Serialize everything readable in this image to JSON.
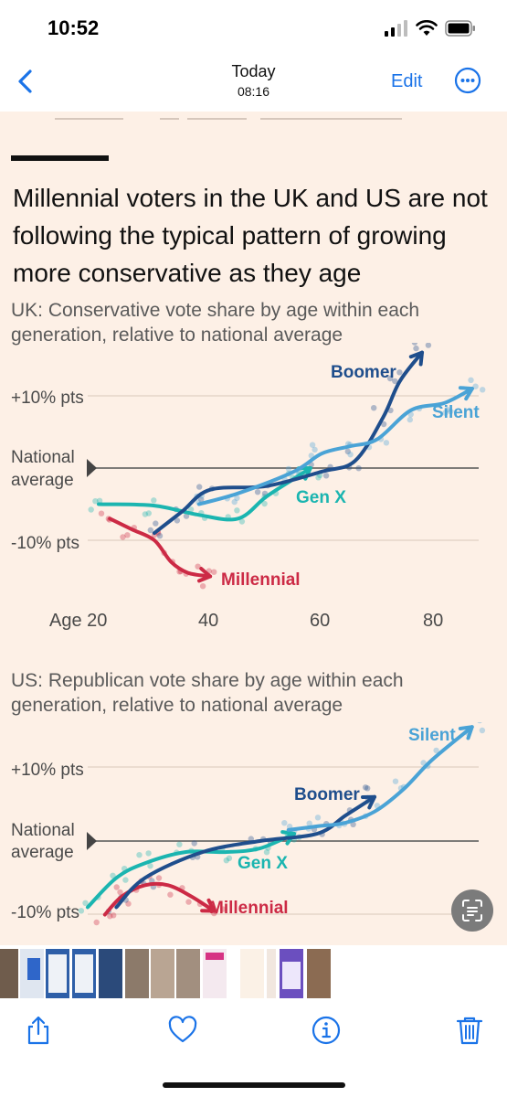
{
  "status": {
    "time": "10:52"
  },
  "nav": {
    "title": "Today",
    "subtitle": "08:16",
    "edit_label": "Edit"
  },
  "article": {
    "headline": "Millennial voters in the UK and US are not following the typical pattern of growing more conservative as they age"
  },
  "uk_chart": {
    "subtitle": "UK: Conservative vote share by age within each generation, relative to national average",
    "y_labels": [
      "+10% pts",
      "National",
      "average",
      "-10% pts"
    ],
    "x_labels": [
      "Age 20",
      "40",
      "60",
      "80"
    ],
    "series_labels": {
      "boomer": "Boomer",
      "silent": "Silent",
      "genx": "Gen X",
      "millennial": "Millennial"
    }
  },
  "us_chart": {
    "subtitle": "US: Republican vote share by age within each generation, relative to national average",
    "y_labels": [
      "+10% pts",
      "National",
      "average",
      "-10% pts"
    ],
    "series_labels": {
      "boomer": "Boomer",
      "silent": "Silent",
      "genx": "Gen X",
      "millennial": "Millennial"
    }
  },
  "colors": {
    "boomer": "#1f4e8c",
    "silent": "#4aa3d6",
    "genx": "#1bb5b0",
    "millennial": "#cc2a45",
    "accent": "#1a73e8",
    "background": "#fdf0e6"
  },
  "chart_data": [
    {
      "type": "line",
      "title": "UK: Conservative vote share by age within each generation, relative to national average",
      "xlabel": "Age",
      "ylabel": "",
      "xlim": [
        20,
        88
      ],
      "ylim": [
        -15,
        15
      ],
      "x_ticks": [
        20,
        40,
        60,
        80
      ],
      "y_ticks": [
        10,
        0,
        -10
      ],
      "series": [
        {
          "name": "Millennial",
          "x": [
            22,
            26,
            30,
            33,
            36,
            40
          ],
          "y": [
            -7,
            -8.5,
            -10,
            -13,
            -14.5,
            -15
          ]
        },
        {
          "name": "Gen X",
          "x": [
            20,
            30,
            38,
            45,
            50,
            55,
            58
          ],
          "y": [
            -5,
            -5.2,
            -6.5,
            -7,
            -4,
            -1.5,
            0
          ]
        },
        {
          "name": "Boomer",
          "x": [
            30,
            35,
            40,
            50,
            60,
            66,
            71,
            74,
            78
          ],
          "y": [
            -9,
            -6,
            -3,
            -2.5,
            -0.5,
            1,
            7,
            12,
            16
          ]
        },
        {
          "name": "Silent",
          "x": [
            38,
            45,
            55,
            60,
            65,
            70,
            76,
            82,
            87
          ],
          "y": [
            -5,
            -3.5,
            -0.5,
            2,
            3,
            4,
            8,
            9,
            11
          ]
        }
      ]
    },
    {
      "type": "line",
      "title": "US: Republican vote share by age within each generation, relative to national average",
      "xlabel": "",
      "ylabel": "",
      "xlim": [
        20,
        88
      ],
      "ylim": [
        -10,
        15
      ],
      "y_ticks": [
        10,
        0,
        -10
      ],
      "series": [
        {
          "name": "Millennial",
          "x": [
            23,
            26,
            30,
            34,
            38,
            42
          ],
          "y": [
            -10,
            -7.5,
            -6,
            -6,
            -7.5,
            -9.5
          ]
        },
        {
          "name": "Gen X",
          "x": [
            20,
            25,
            30,
            37,
            44,
            50,
            56
          ],
          "y": [
            -9,
            -5,
            -3,
            -1.5,
            -1.5,
            -1,
            1
          ]
        },
        {
          "name": "Boomer",
          "x": [
            25,
            30,
            40,
            50,
            60,
            65,
            70
          ],
          "y": [
            -9,
            -5,
            -1.5,
            0,
            1,
            3.5,
            6
          ]
        },
        {
          "name": "Silent",
          "x": [
            55,
            60,
            65,
            70,
            75,
            80,
            87
          ],
          "y": [
            1.5,
            2,
            2.5,
            4,
            7,
            11,
            15.5
          ]
        }
      ]
    }
  ]
}
